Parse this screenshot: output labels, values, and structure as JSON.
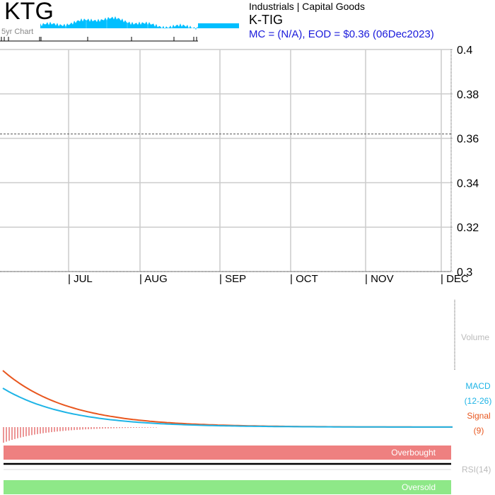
{
  "header": {
    "ticker": "KTG",
    "sparkline_label": "5yr Chart",
    "sector": "Industrials | Capital Goods",
    "symbol": "K-TIG",
    "summary": "MC = (N/A), EOD = $0.36 (06Dec2023)"
  },
  "colors": {
    "sparkline": "#00bfff",
    "grid": "#cccccc",
    "macd": "#1eb4e6",
    "signal": "#e8561e",
    "histogram": "#e05050",
    "overbought": "#ee8080",
    "oversold": "#8ee888",
    "label_blue": "#1a1adb"
  },
  "chart_data": {
    "type": "line",
    "x_tick_labels": [
      "| JUL",
      "| AUG",
      "| SEP",
      "| OCT",
      "| NOV",
      "| DEC"
    ],
    "y_tick_labels": [
      "0.4",
      "0.38",
      "0.36",
      "0.34",
      "0.32",
      "0.3"
    ],
    "ylim": [
      0.3,
      0.4
    ],
    "reference_line": 0.362,
    "grid": true,
    "panels": {
      "volume_label": "Volume",
      "macd_label": "MACD",
      "macd_params": "(12-26)",
      "signal_label": "Signal",
      "signal_params": "(9)",
      "overbought_label": "Overbought",
      "rsi_label": "RSI(14)",
      "oversold_label": "Oversold"
    },
    "macd_series": {
      "macd_start": 0.55,
      "signal_start": 0.8,
      "decay": 0.05,
      "baseline": 0
    }
  }
}
